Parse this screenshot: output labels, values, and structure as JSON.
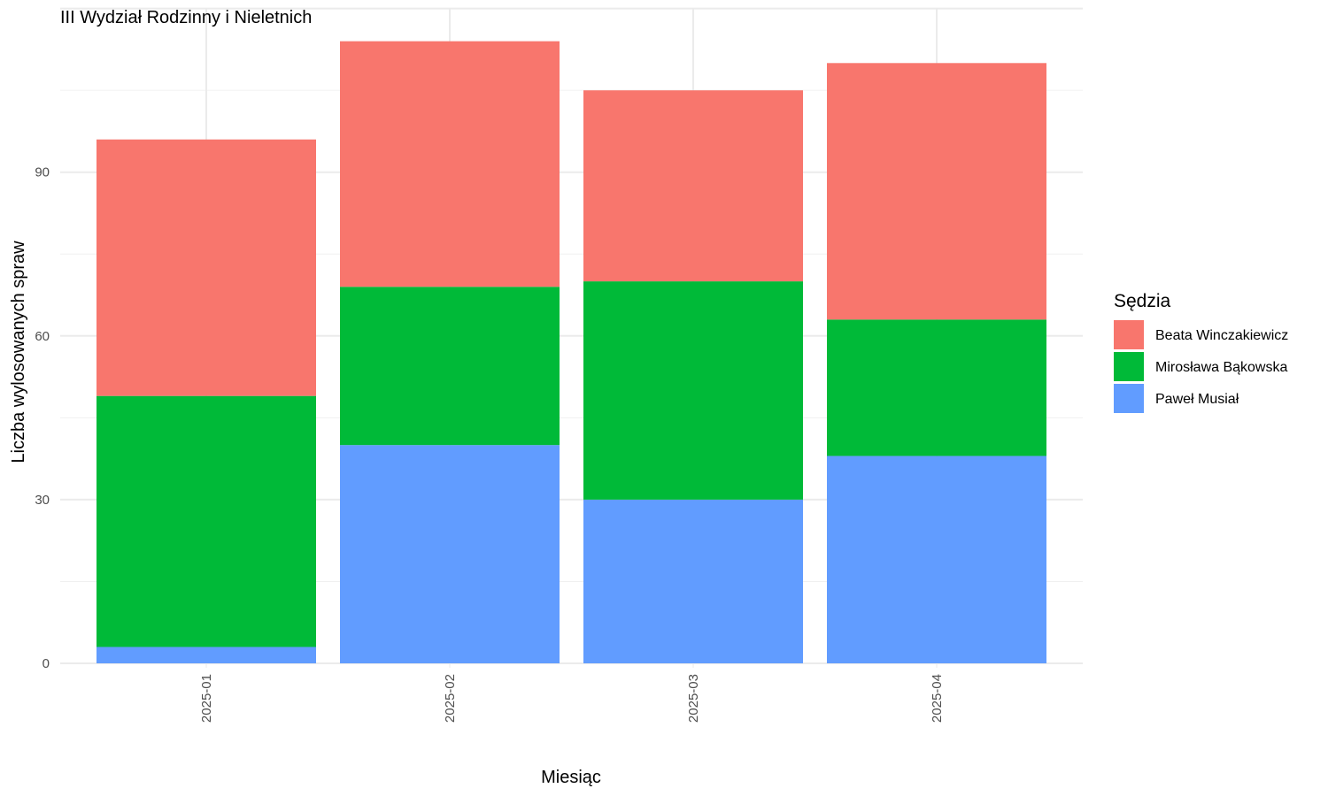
{
  "chart_data": {
    "type": "bar",
    "stacked": true,
    "title": "III Wydział Rodzinny i Nieletnich",
    "xlabel": "Miesiąc",
    "ylabel": "Liczba wylosowanych spraw",
    "categories": [
      "2025-01",
      "2025-02",
      "2025-03",
      "2025-04"
    ],
    "yticks": [
      0,
      30,
      60,
      90
    ],
    "ylim": [
      0,
      120
    ],
    "grid": true,
    "legend": {
      "title": "Sędzia",
      "position": "right"
    },
    "series": [
      {
        "name": "Paweł Musiał",
        "color": "#619CFF",
        "values": [
          3,
          40,
          30,
          38
        ]
      },
      {
        "name": "Mirosława Bąkowska",
        "color": "#00BA38",
        "values": [
          46,
          29,
          40,
          25
        ]
      },
      {
        "name": "Beata Winczakiewicz",
        "color": "#F8766D",
        "values": [
          47,
          45,
          35,
          47
        ]
      }
    ],
    "legend_order": [
      "Beata Winczakiewicz",
      "Mirosława Bąkowska",
      "Paweł Musiał"
    ]
  }
}
